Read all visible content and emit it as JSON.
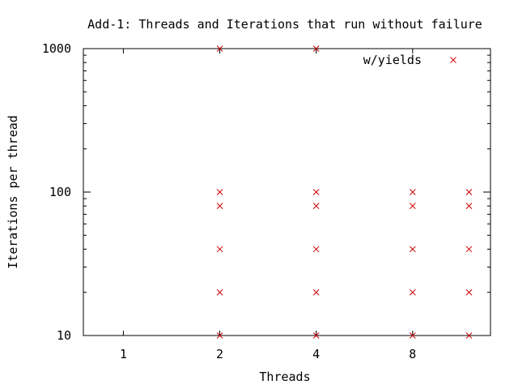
{
  "chart_data": {
    "type": "scatter",
    "title": "Add-1: Threads and Iterations that run without failure",
    "xlabel": "Threads",
    "ylabel": "Iterations per thread",
    "x_scale": "log2",
    "y_scale": "log10",
    "xlim": [
      0.75,
      14
    ],
    "ylim": [
      10,
      1000
    ],
    "x_ticks": [
      1,
      2,
      4,
      8
    ],
    "x_tick_labels": [
      "1",
      "2",
      "4",
      "8"
    ],
    "y_ticks": [
      10,
      100,
      1000
    ],
    "y_tick_labels": [
      "10",
      "100",
      "1000"
    ],
    "grid": false,
    "legend_position": "top-right",
    "series": [
      {
        "name": "w/yields",
        "marker": "x",
        "color": "#cc0000",
        "points": [
          {
            "x": 2,
            "y": 10
          },
          {
            "x": 2,
            "y": 20
          },
          {
            "x": 2,
            "y": 40
          },
          {
            "x": 2,
            "y": 80
          },
          {
            "x": 2,
            "y": 100
          },
          {
            "x": 2,
            "y": 1000
          },
          {
            "x": 4,
            "y": 10
          },
          {
            "x": 4,
            "y": 20
          },
          {
            "x": 4,
            "y": 40
          },
          {
            "x": 4,
            "y": 80
          },
          {
            "x": 4,
            "y": 100
          },
          {
            "x": 4,
            "y": 1000
          },
          {
            "x": 8,
            "y": 10
          },
          {
            "x": 8,
            "y": 20
          },
          {
            "x": 8,
            "y": 40
          },
          {
            "x": 8,
            "y": 80
          },
          {
            "x": 8,
            "y": 100
          },
          {
            "x": 12,
            "y": 10
          },
          {
            "x": 12,
            "y": 20
          },
          {
            "x": 12,
            "y": 40
          },
          {
            "x": 12,
            "y": 80
          },
          {
            "x": 12,
            "y": 100
          }
        ]
      }
    ]
  }
}
